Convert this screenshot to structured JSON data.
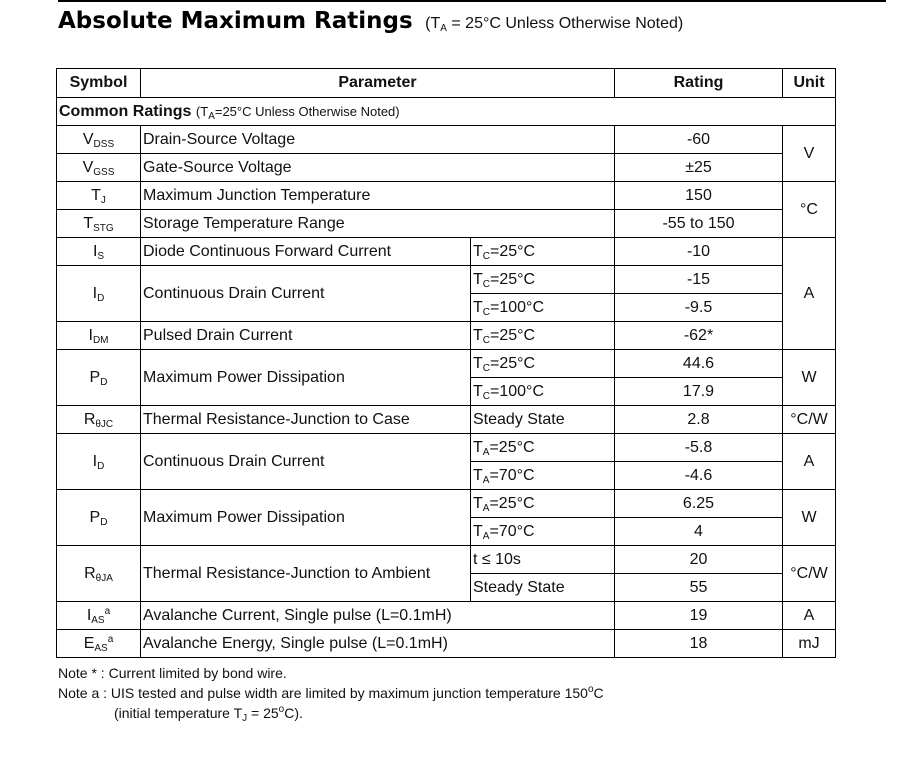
{
  "title": {
    "main": "Absolute Maximum Ratings",
    "cond_prefix": "(T",
    "cond_sub": "A",
    "cond_rest": " = 25°C Unless Otherwise Noted)"
  },
  "table": {
    "headers": {
      "symbol": "Symbol",
      "parameter": "Parameter",
      "rating": "Rating",
      "unit": "Unit"
    },
    "section": {
      "label": "Common Ratings",
      "note": "(T",
      "note_sub": "A",
      "note_rest": "=25°C Unless Otherwise Noted)"
    },
    "rows": [
      {
        "sym": "V",
        "sub": "DSS",
        "param": "Drain-Source Voltage",
        "cond": "",
        "rating": "-60"
      },
      {
        "sym": "V",
        "sub": "GSS",
        "param": "Gate-Source Voltage",
        "cond": "",
        "rating": "±25"
      },
      {
        "sym": "T",
        "sub": "J",
        "param": "Maximum Junction Temperature",
        "cond": "",
        "rating": "150"
      },
      {
        "sym": "T",
        "sub": "STG",
        "param": "Storage Temperature Range",
        "cond": "",
        "rating": "-55 to 150"
      },
      {
        "sym": "I",
        "sub": "S",
        "param": "Diode Continuous Forward Current",
        "cond_t": "T",
        "cond_s": "C",
        "cond_v": "=25°C",
        "rating": "-10"
      },
      {
        "sym": "I",
        "sub": "D",
        "param": "Continuous Drain Current",
        "c1_t": "T",
        "c1_s": "C",
        "c1_v": "=25°C",
        "r1": "-15",
        "c2_t": "T",
        "c2_s": "C",
        "c2_v": "=100°C",
        "r2": "-9.5"
      },
      {
        "sym": "I",
        "sub": "DM",
        "param": "Pulsed Drain Current",
        "cond_t": "T",
        "cond_s": "C",
        "cond_v": "=25°C",
        "rating": "-62*"
      },
      {
        "sym": "P",
        "sub": "D",
        "param": "Maximum Power Dissipation",
        "c1_t": "T",
        "c1_s": "C",
        "c1_v": "=25°C",
        "r1": "44.6",
        "c2_t": "T",
        "c2_s": "C",
        "c2_v": "=100°C",
        "r2": "17.9"
      },
      {
        "sym": "R",
        "sub": "θJC",
        "param": "Thermal Resistance-Junction to Case",
        "cond": "Steady State",
        "rating": "2.8"
      },
      {
        "sym": "I",
        "sub": "D",
        "param": "Continuous Drain Current",
        "c1_t": "T",
        "c1_s": "A",
        "c1_v": "=25°C",
        "r1": "-5.8",
        "c2_t": "T",
        "c2_s": "A",
        "c2_v": "=70°C",
        "r2": "-4.6"
      },
      {
        "sym": "P",
        "sub": "D",
        "param": "Maximum Power Dissipation",
        "c1_t": "T",
        "c1_s": "A",
        "c1_v": "=25°C",
        "r1": "6.25",
        "c2_t": "T",
        "c2_s": "A",
        "c2_v": "=70°C",
        "r2": "4"
      },
      {
        "sym": "R",
        "sub": "θJA",
        "param": "Thermal Resistance-Junction to Ambient",
        "c1": "t ≤ 10s",
        "r1": "20",
        "c2": "Steady State",
        "r2": "55"
      },
      {
        "sym": "I",
        "sub": "AS",
        "sup": "a",
        "param": "Avalanche Current, Single pulse (L=0.1mH)",
        "rating": "19"
      },
      {
        "sym": "E",
        "sub": "AS",
        "sup": "a",
        "param": "Avalanche Energy, Single pulse (L=0.1mH)",
        "rating": "18"
      }
    ],
    "units": {
      "v": "V",
      "c": "°C",
      "a": "A",
      "w": "W",
      "cw": "°C/W",
      "a2": "A",
      "w2": "W",
      "cw2": "°C/W",
      "a3": "A",
      "mj": "mJ"
    }
  },
  "notes": {
    "star": "Note * :  Current limited by bond wire.",
    "a_line": "Note a :  UIS tested and pulse width are limited by maximum junction temperature 150",
    "a_deg": "o",
    "a_c": "C",
    "a2_prefix": "(initial temperature T",
    "a2_sub": "J",
    "a2_mid": " = 25",
    "a2_deg": "o",
    "a2_end": "C)."
  }
}
